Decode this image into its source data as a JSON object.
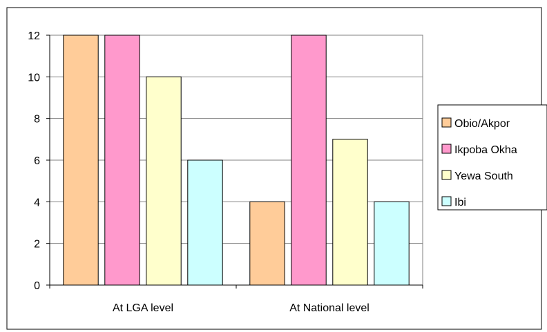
{
  "chart_data": {
    "type": "bar",
    "title": "",
    "xlabel": "",
    "ylabel": "",
    "categories": [
      "At LGA level",
      "At National level"
    ],
    "series": [
      {
        "name": "Obio/Akpor",
        "values": [
          12,
          4
        ],
        "color": "#FFCC99"
      },
      {
        "name": "Ikpoba Okha",
        "values": [
          12,
          12
        ],
        "color": "#FF99CC"
      },
      {
        "name": "Yewa South",
        "values": [
          10,
          7
        ],
        "color": "#FFFFCC"
      },
      {
        "name": "Ibi",
        "values": [
          6,
          4
        ],
        "color": "#CCFFFF"
      }
    ],
    "ylim": [
      0,
      12
    ],
    "yticks": [
      0,
      2,
      4,
      6,
      8,
      10,
      12
    ],
    "grid": true,
    "legend_position": "right"
  }
}
